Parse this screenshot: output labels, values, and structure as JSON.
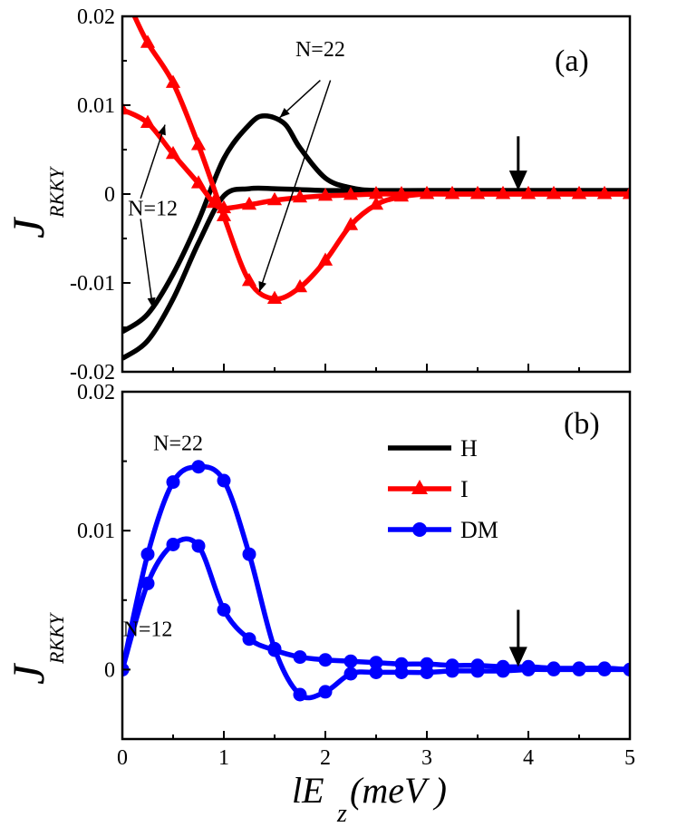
{
  "chart_data": [
    {
      "panel": "(a)",
      "type": "line",
      "xlim": [
        0,
        5
      ],
      "ylim": [
        -0.02,
        0.02
      ],
      "xticks": [
        "0",
        "1",
        "2",
        "3",
        "4",
        "5"
      ],
      "yticks": [
        "-0.02",
        "-0.01",
        "0",
        "0.01",
        "0.02"
      ],
      "ylabel": "J",
      "ylabel_sub": "RKKY",
      "series": [
        {
          "name": "H",
          "color": "#000000",
          "marker": "none",
          "x": [
            0,
            0.25,
            0.5,
            0.75,
            1.0,
            1.25,
            1.5,
            1.75,
            2.0,
            2.25,
            2.5,
            3.0,
            4.0,
            5.0
          ],
          "values": [
            -0.0185,
            -0.0165,
            -0.0118,
            -0.0055,
            -0.0002,
            0.0006,
            0.0006,
            0.0005,
            0.0004,
            0.0004,
            0.0004,
            0.0004,
            0.0004,
            0.0004
          ],
          "label": "N=12"
        },
        {
          "name": "H",
          "color": "#000000",
          "marker": "none",
          "x": [
            0,
            0.25,
            0.5,
            0.75,
            1.0,
            1.25,
            1.4,
            1.6,
            1.75,
            2.0,
            2.25,
            2.5,
            3.0,
            4.0,
            5.0
          ],
          "values": [
            -0.0155,
            -0.0135,
            -0.009,
            -0.003,
            0.004,
            0.0078,
            0.0088,
            0.0079,
            0.0052,
            0.0018,
            0.0007,
            0.0004,
            0.0004,
            0.0004,
            0.0004
          ],
          "label": "N=22"
        },
        {
          "name": "I",
          "color": "#ff0000",
          "marker": "triangle",
          "x": [
            0,
            0.25,
            0.5,
            0.75,
            0.9,
            1.0,
            1.25,
            1.5,
            1.75,
            2.0,
            2.25,
            2.5,
            2.75,
            3.0,
            3.25,
            3.5,
            3.75,
            4.0,
            4.25,
            4.5,
            4.75,
            5.0
          ],
          "values": [
            0.0095,
            0.008,
            0.0045,
            0.0012,
            -0.001,
            -0.0016,
            -0.0012,
            -0.0007,
            -0.0004,
            -0.0002,
            -0.0001,
            0,
            0,
            0,
            0,
            0,
            0,
            0,
            0,
            0,
            0,
            0
          ],
          "label": "N=12"
        },
        {
          "name": "I",
          "color": "#ff0000",
          "marker": "triangle",
          "x": [
            0.1,
            0.25,
            0.5,
            0.75,
            1.0,
            1.25,
            1.5,
            1.75,
            2.0,
            2.25,
            2.5,
            2.75,
            3.0,
            3.25,
            3.5,
            3.75,
            4.0,
            4.25,
            4.5,
            4.75,
            5.0
          ],
          "values": [
            0.0205,
            0.017,
            0.0125,
            0.0055,
            -0.0025,
            -0.0098,
            -0.0118,
            -0.0105,
            -0.0075,
            -0.0035,
            -0.0012,
            -0.0003,
            0,
            0,
            0,
            0,
            0,
            0,
            0,
            0,
            0
          ],
          "label": "N=22"
        }
      ],
      "annotations": [
        {
          "text": "N=22",
          "x": 1.95,
          "y": 0.0155
        },
        {
          "text": "N=12",
          "x": 0.3,
          "y": -0.0024
        }
      ],
      "arrow": {
        "x": 3.9,
        "y_from": 0.0065,
        "y_to": 0.0004
      }
    },
    {
      "panel": "(b)",
      "type": "line",
      "xlim": [
        0,
        5
      ],
      "ylim": [
        -0.005,
        0.02
      ],
      "xticks": [
        "0",
        "1",
        "2",
        "3",
        "4",
        "5"
      ],
      "yticks": [
        "0",
        "0.01",
        "0.02"
      ],
      "ylabel": "J",
      "ylabel_sub": "RKKY",
      "xlabel": "lE",
      "xlabel_sub": "z",
      "xlabel_suffix": "(meV )",
      "legend": {
        "placement": "top-right",
        "entries": [
          "H",
          "I",
          "DM"
        ]
      },
      "series": [
        {
          "name": "DM",
          "color": "#0000ff",
          "marker": "circle",
          "x": [
            0,
            0.25,
            0.5,
            0.75,
            1.0,
            1.25,
            1.5,
            1.75,
            2.0,
            2.25,
            2.5,
            2.75,
            3.0,
            3.25,
            3.5,
            3.75,
            4.0,
            4.25,
            4.5,
            4.75,
            5.0
          ],
          "values": [
            0,
            0.0083,
            0.0135,
            0.0146,
            0.0136,
            0.0083,
            0.0015,
            -0.0018,
            -0.0016,
            -0.0003,
            -0.0002,
            -0.0002,
            -0.0002,
            -0.0001,
            -0.0001,
            -0.0001,
            0,
            0,
            0,
            0,
            0
          ],
          "label": "N=22"
        },
        {
          "name": "DM",
          "color": "#0000ff",
          "marker": "circle",
          "x": [
            0,
            0.25,
            0.5,
            0.75,
            1.0,
            1.25,
            1.5,
            1.75,
            2.0,
            2.25,
            2.5,
            2.75,
            3.0,
            3.25,
            3.5,
            3.75,
            4.0,
            4.25,
            4.5,
            4.75,
            5.0
          ],
          "values": [
            0,
            0.0062,
            0.009,
            0.0089,
            0.0043,
            0.0022,
            0.0014,
            0.0009,
            0.0007,
            0.0006,
            0.0005,
            0.0004,
            0.0004,
            0.0003,
            0.0003,
            0.0002,
            0.0002,
            0.0001,
            0.0001,
            0.0001,
            0
          ],
          "label": "N=12"
        }
      ],
      "annotations": [
        {
          "text": "N=22",
          "x": 0.55,
          "y": 0.0158
        },
        {
          "text": "N=12",
          "x": 0.25,
          "y": 0.0024
        }
      ],
      "arrow": {
        "x": 3.9,
        "y_from": 0.0043,
        "y_to": 0.0002
      }
    }
  ]
}
